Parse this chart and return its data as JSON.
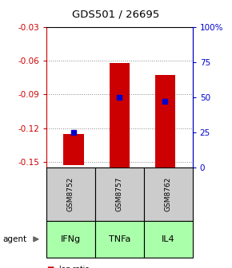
{
  "title": "GDS501 / 26695",
  "samples": [
    "GSM8752",
    "GSM8757",
    "GSM8762"
  ],
  "agents": [
    "IFNg",
    "TNFa",
    "IL4"
  ],
  "log_ratios": [
    -0.125,
    -0.062,
    -0.073
  ],
  "bar_bottoms": [
    -0.153,
    -0.155,
    -0.155
  ],
  "percentile_ranks": [
    25,
    50,
    47
  ],
  "ylim_left": [
    -0.155,
    -0.03
  ],
  "ylim_right": [
    0,
    100
  ],
  "yticks_left": [
    -0.15,
    -0.12,
    -0.09,
    -0.06,
    -0.03
  ],
  "yticks_right": [
    0,
    25,
    50,
    75,
    100
  ],
  "ytick_labels_left": [
    "-0.15",
    "-0.12",
    "-0.09",
    "-0.06",
    "-0.03"
  ],
  "ytick_labels_right": [
    "0",
    "25",
    "50",
    "75",
    "100%"
  ],
  "bar_color": "#cc0000",
  "square_color": "#0000cc",
  "sample_bg_color": "#cccccc",
  "agent_bg_color": "#aaffaa",
  "grid_color": "#888888",
  "bar_width": 0.45
}
